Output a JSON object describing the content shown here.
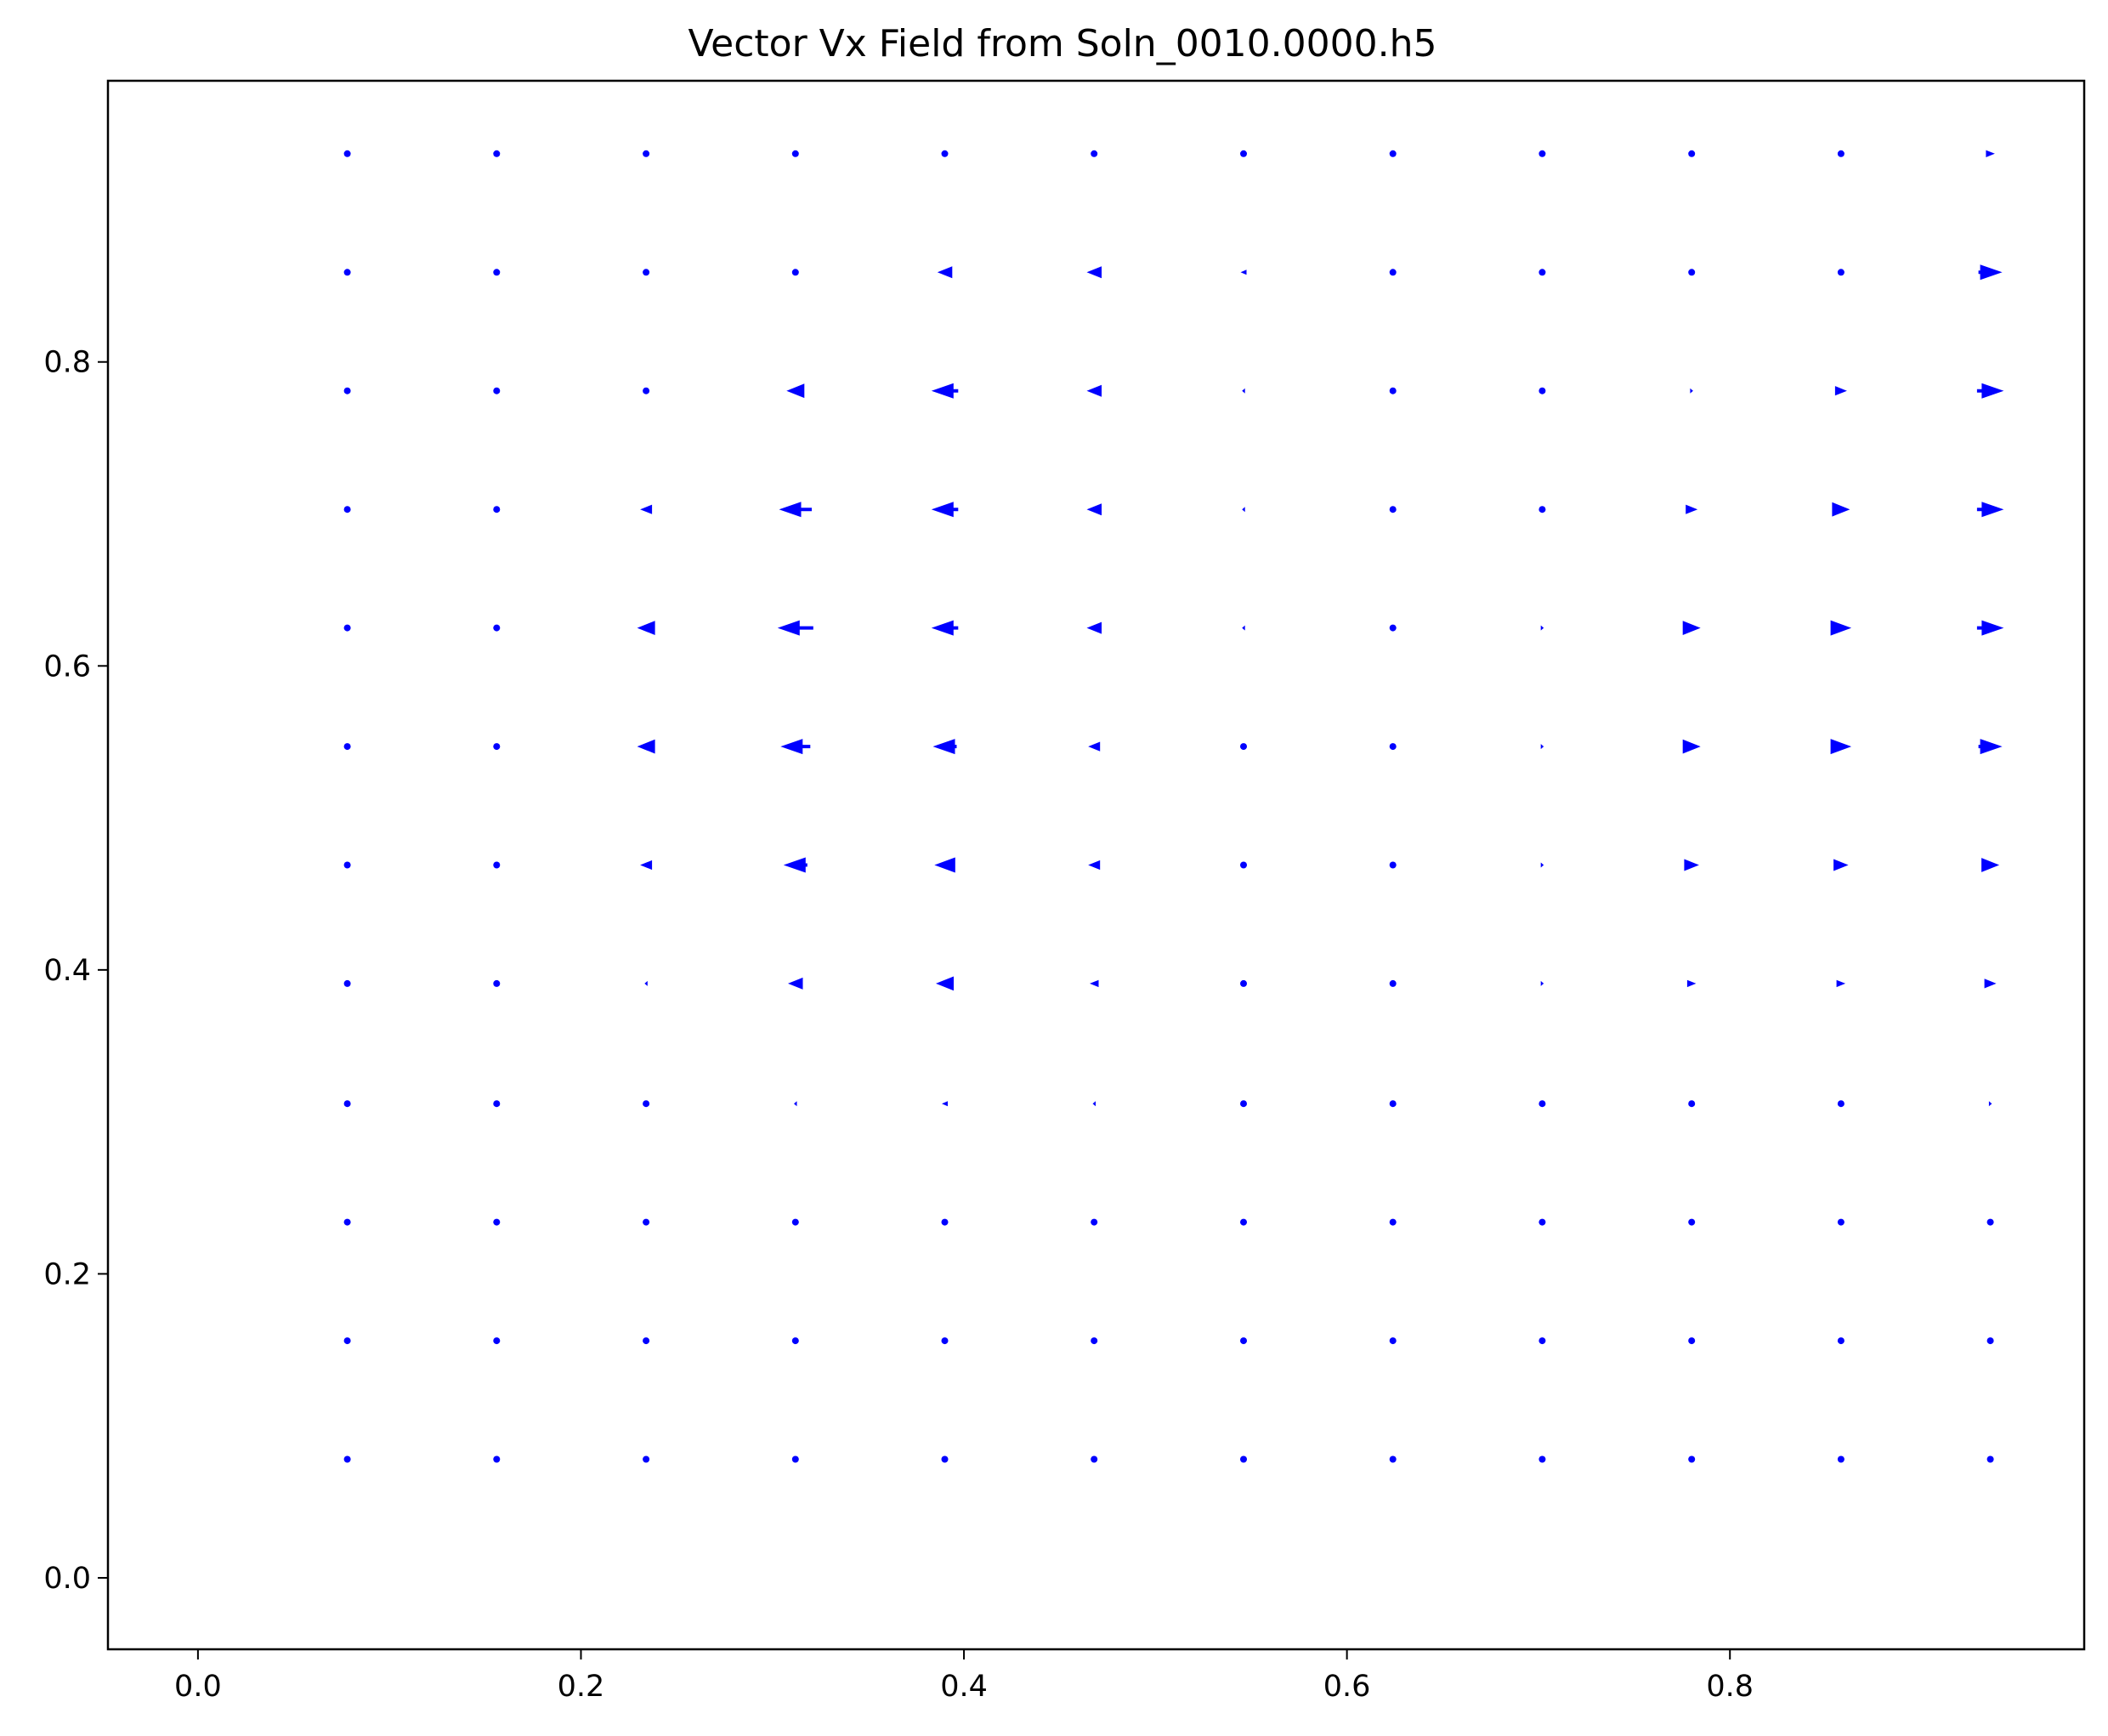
{
  "chart_data": {
    "type": "quiver",
    "title": "Vector Vx Field from Soln_0010.0000.h5",
    "xlabel": "",
    "ylabel": "",
    "xlim": [
      -0.047,
      0.985
    ],
    "ylim": [
      -0.047,
      0.985
    ],
    "x_ticks": [
      0.0,
      0.2,
      0.4,
      0.6,
      0.8
    ],
    "y_ticks": [
      0.0,
      0.2,
      0.4,
      0.6,
      0.8
    ],
    "x_tick_labels": [
      "0.0",
      "0.2",
      "0.4",
      "0.6",
      "0.8"
    ],
    "y_tick_labels": [
      "0.0",
      "0.2",
      "0.4",
      "0.6",
      "0.8"
    ],
    "grid": false,
    "arrow_color": "#0000ff",
    "x": [
      0.078,
      0.156,
      0.234,
      0.312,
      0.39,
      0.468,
      0.546,
      0.624,
      0.702,
      0.78,
      0.858,
      0.936
    ],
    "y": [
      0.937,
      0.859,
      0.781,
      0.703,
      0.625,
      0.547,
      0.469,
      0.391,
      0.312,
      0.234,
      0.156,
      0.078
    ],
    "u": [
      [
        0,
        0,
        0,
        0,
        0,
        0,
        0,
        0,
        0,
        0,
        0,
        0.15
      ],
      [
        0,
        0,
        0,
        0,
        -0.25,
        -0.25,
        -0.1,
        0,
        0,
        0,
        0,
        0.4
      ],
      [
        0,
        0,
        0,
        -0.3,
        -0.45,
        -0.25,
        -0.05,
        0,
        0,
        0.05,
        0.2,
        0.45
      ],
      [
        0,
        0,
        -0.2,
        -0.55,
        -0.45,
        -0.25,
        -0.05,
        0,
        0,
        0.2,
        0.3,
        0.45
      ],
      [
        0,
        0,
        -0.3,
        -0.6,
        -0.45,
        -0.25,
        -0.05,
        0,
        0.05,
        0.3,
        0.35,
        0.45
      ],
      [
        0,
        0,
        -0.3,
        -0.5,
        -0.4,
        -0.2,
        0,
        0,
        0.05,
        0.3,
        0.35,
        0.4
      ],
      [
        0,
        0,
        -0.2,
        -0.4,
        -0.35,
        -0.2,
        0,
        0,
        0.05,
        0.25,
        0.25,
        0.3
      ],
      [
        0,
        0,
        -0.05,
        -0.25,
        -0.3,
        -0.15,
        0,
        0,
        0.05,
        0.15,
        0.15,
        0.2
      ],
      [
        0,
        0,
        0,
        -0.05,
        -0.1,
        -0.05,
        0,
        0,
        0,
        0,
        0,
        0.05
      ],
      [
        0,
        0,
        0,
        0,
        0,
        0,
        0,
        0,
        0,
        0,
        0,
        0
      ],
      [
        0,
        0,
        0,
        0,
        0,
        0,
        0,
        0,
        0,
        0,
        0,
        0
      ],
      [
        0,
        0,
        0,
        0,
        0,
        0,
        0,
        0,
        0,
        0,
        0,
        0
      ]
    ]
  }
}
